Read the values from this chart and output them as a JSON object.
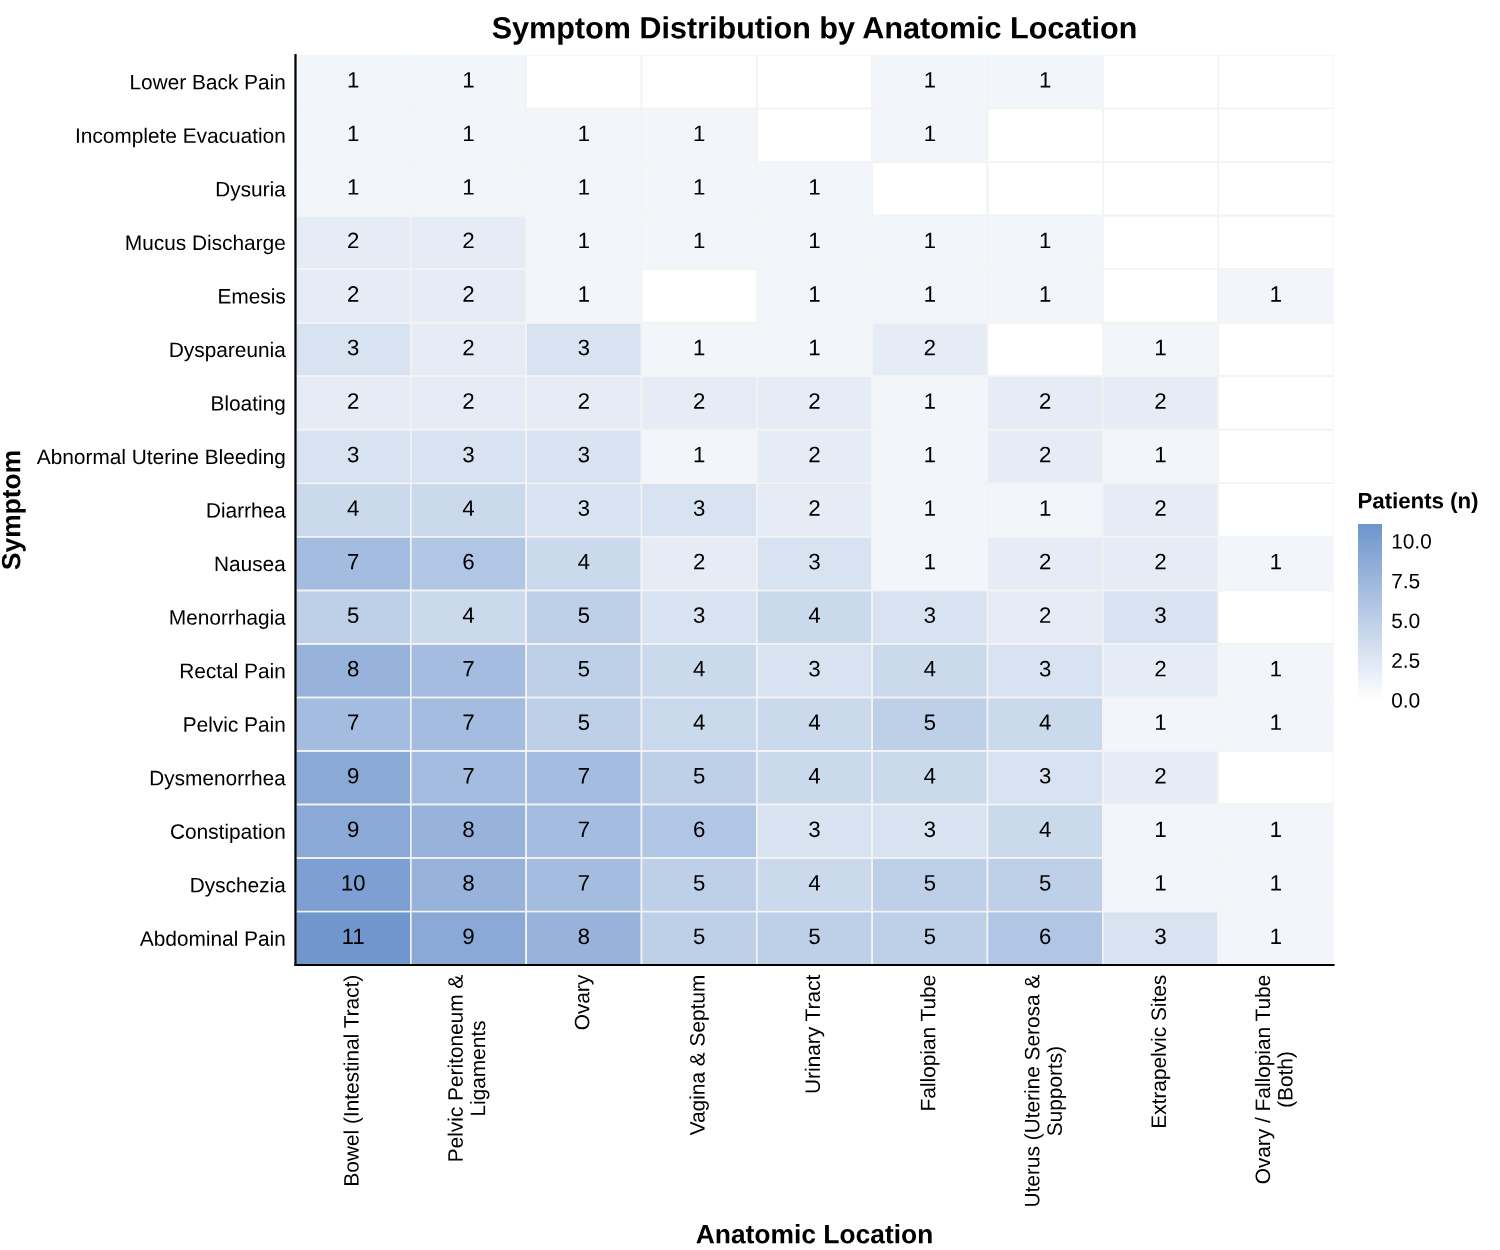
{
  "chart_data": {
    "type": "heatmap",
    "title": "Symptom Distribution by Anatomic Location",
    "xlabel": "Anatomic Location",
    "ylabel": "Symptom",
    "clabel": "Patients (n)",
    "categories": [
      "Bowel (Intestinal Tract)",
      "Pelvic Peritoneum &\nLigaments",
      "Ovary",
      "Vagina & Septum",
      "Urinary Tract",
      "Fallopian Tube",
      "Uterus (Uterine Serosa &\nSupports)",
      "Extrapelvic Sites",
      "Ovary / Fallopian Tube\n(Both)"
    ],
    "y_categories": [
      "Lower Back Pain",
      "Incomplete Evacuation",
      "Dysuria",
      "Mucus Discharge",
      "Emesis",
      "Dyspareunia",
      "Bloating",
      "Abnormal Uterine Bleeding",
      "Diarrhea",
      "Nausea",
      "Menorrhagia",
      "Rectal Pain",
      "Pelvic Pain",
      "Dysmenorrhea",
      "Constipation",
      "Dyschezia",
      "Abdominal Pain"
    ],
    "cells": [
      [
        1,
        1,
        null,
        null,
        null,
        1,
        1,
        null,
        null
      ],
      [
        1,
        1,
        1,
        1,
        null,
        1,
        null,
        null,
        null
      ],
      [
        1,
        1,
        1,
        1,
        1,
        null,
        null,
        null,
        null
      ],
      [
        2,
        2,
        1,
        1,
        1,
        1,
        1,
        null,
        null
      ],
      [
        2,
        2,
        1,
        null,
        1,
        1,
        1,
        null,
        1
      ],
      [
        3,
        2,
        3,
        1,
        1,
        2,
        null,
        1,
        null
      ],
      [
        2,
        2,
        2,
        2,
        2,
        1,
        2,
        2,
        null
      ],
      [
        3,
        3,
        3,
        1,
        2,
        1,
        2,
        1,
        null
      ],
      [
        4,
        4,
        3,
        3,
        2,
        1,
        1,
        2,
        null
      ],
      [
        7,
        6,
        4,
        2,
        3,
        1,
        2,
        2,
        1
      ],
      [
        5,
        4,
        5,
        3,
        4,
        3,
        2,
        3,
        null
      ],
      [
        8,
        7,
        5,
        4,
        3,
        4,
        3,
        2,
        1
      ],
      [
        7,
        7,
        5,
        4,
        4,
        5,
        4,
        1,
        1
      ],
      [
        9,
        7,
        7,
        5,
        4,
        4,
        3,
        2,
        null
      ],
      [
        9,
        8,
        7,
        6,
        3,
        3,
        4,
        1,
        1
      ],
      [
        10,
        8,
        7,
        5,
        4,
        5,
        5,
        1,
        1
      ],
      [
        11,
        9,
        8,
        5,
        5,
        5,
        6,
        3,
        1
      ]
    ],
    "clim": [
      0,
      11
    ],
    "cticks": [
      {
        "value": 0,
        "label": "0.0"
      },
      {
        "value": 2.5,
        "label": "2.5"
      },
      {
        "value": 5,
        "label": "5.0"
      },
      {
        "value": 7.5,
        "label": "7.5"
      },
      {
        "value": 10,
        "label": "10.0"
      }
    ],
    "colors": [
      "#ffffff",
      "#7096cd"
    ],
    "data_labels": true
  }
}
